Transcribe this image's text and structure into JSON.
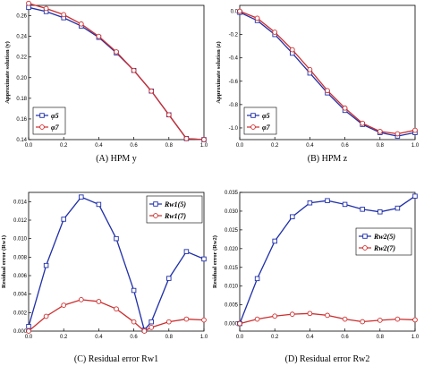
{
  "chart_data": [
    {
      "type": "line",
      "caption": "(A)  HPM y",
      "ylabel": "Approximate solution (y)",
      "xlim": [
        0,
        1
      ],
      "ylim": [
        0.14,
        0.27
      ],
      "xticks": [
        "0.0",
        "0.2",
        "0.4",
        "0.6",
        "0.8",
        "1.0"
      ],
      "yticks": [
        "0.14",
        "0.16",
        "0.18",
        "0.20",
        "0.22",
        "0.24",
        "0.26"
      ],
      "legend_position": "bottom-left",
      "series": [
        {
          "name": "φ5",
          "color": "#1f2fa8",
          "marker": "square",
          "x": [
            0,
            0.1,
            0.2,
            0.3,
            0.4,
            0.5,
            0.6,
            0.7,
            0.8,
            0.9,
            1.0
          ],
          "y": [
            0.268,
            0.264,
            0.258,
            0.25,
            0.239,
            0.224,
            0.207,
            0.187,
            0.164,
            0.141,
            0.14
          ]
        },
        {
          "name": "φ7",
          "color": "#cc2e2e",
          "marker": "circle",
          "x": [
            0,
            0.1,
            0.2,
            0.3,
            0.4,
            0.5,
            0.6,
            0.7,
            0.8,
            0.9,
            1.0
          ],
          "y": [
            0.272,
            0.267,
            0.261,
            0.252,
            0.24,
            0.225,
            0.207,
            0.187,
            0.164,
            0.141,
            0.14
          ]
        }
      ]
    },
    {
      "type": "line",
      "caption": "(B)  HPM z",
      "ylabel": "Approximate solution (z)",
      "xlim": [
        0,
        1
      ],
      "ylim": [
        -1.1,
        0.05
      ],
      "xticks": [
        "0.0",
        "0.2",
        "0.4",
        "0.6",
        "0.8",
        "1.0"
      ],
      "yticks": [
        "0.0",
        "-0.2",
        "-0.4",
        "-0.6",
        "-0.8",
        "-1.0"
      ],
      "legend_position": "bottom-left",
      "series": [
        {
          "name": "φ5",
          "color": "#1f2fa8",
          "marker": "square",
          "x": [
            0,
            0.1,
            0.2,
            0.3,
            0.4,
            0.5,
            0.6,
            0.7,
            0.8,
            0.9,
            1.0
          ],
          "y": [
            -0.01,
            -0.08,
            -0.2,
            -0.36,
            -0.53,
            -0.7,
            -0.85,
            -0.97,
            -1.04,
            -1.07,
            -1.04
          ]
        },
        {
          "name": "φ7",
          "color": "#cc2e2e",
          "marker": "circle",
          "x": [
            0,
            0.1,
            0.2,
            0.3,
            0.4,
            0.5,
            0.6,
            0.7,
            0.8,
            0.9,
            1.0
          ],
          "y": [
            0.0,
            -0.06,
            -0.18,
            -0.33,
            -0.5,
            -0.68,
            -0.83,
            -0.96,
            -1.03,
            -1.05,
            -1.02
          ]
        }
      ]
    },
    {
      "type": "line",
      "caption": "(C)  Residual error Rw1",
      "ylabel": "Residual error (Rw1)",
      "xlim": [
        0,
        1
      ],
      "ylim": [
        0,
        0.015
      ],
      "xticks": [
        "0.0",
        "0.2",
        "0.4",
        "0.6",
        "0.8",
        "1.0"
      ],
      "yticks": [
        "0.000",
        "0.002",
        "0.004",
        "0.006",
        "0.008",
        "0.010",
        "0.012",
        "0.014"
      ],
      "legend_position": "top-right",
      "series": [
        {
          "name": "Rw1(5)",
          "color": "#1f2fa8",
          "marker": "square",
          "x": [
            0,
            0.1,
            0.2,
            0.3,
            0.4,
            0.5,
            0.6,
            0.66,
            0.7,
            0.8,
            0.9,
            1.0
          ],
          "y": [
            0.0005,
            0.0071,
            0.0121,
            0.0145,
            0.0137,
            0.01,
            0.0044,
            0.0001,
            0.001,
            0.0057,
            0.0086,
            0.0078
          ]
        },
        {
          "name": "Rw1(7)",
          "color": "#cc2e2e",
          "marker": "circle",
          "x": [
            0,
            0.1,
            0.2,
            0.3,
            0.4,
            0.5,
            0.6,
            0.66,
            0.7,
            0.8,
            0.9,
            1.0
          ],
          "y": [
            0.0,
            0.0016,
            0.0028,
            0.0034,
            0.0032,
            0.0024,
            0.001,
            0.0,
            0.0004,
            0.001,
            0.0013,
            0.0012
          ]
        }
      ]
    },
    {
      "type": "line",
      "caption": "(D)  Residual error Rw2",
      "ylabel": "Residual error (Rw2)",
      "xlim": [
        0,
        1
      ],
      "ylim": [
        -0.002,
        0.035
      ],
      "xticks": [
        "0.0",
        "0.2",
        "0.4",
        "0.6",
        "0.8",
        "1.0"
      ],
      "yticks": [
        "0.000",
        "0.005",
        "0.010",
        "0.015",
        "0.020",
        "0.025",
        "0.030",
        "0.035"
      ],
      "legend_position": "center-right",
      "series": [
        {
          "name": "Rw2(5)",
          "color": "#1f2fa8",
          "marker": "square",
          "x": [
            0,
            0.1,
            0.2,
            0.3,
            0.4,
            0.5,
            0.6,
            0.7,
            0.8,
            0.9,
            1.0
          ],
          "y": [
            0.0,
            0.012,
            0.022,
            0.0285,
            0.0322,
            0.0328,
            0.0318,
            0.0305,
            0.0298,
            0.0308,
            0.034
          ]
        },
        {
          "name": "Rw2(7)",
          "color": "#cc2e2e",
          "marker": "circle",
          "x": [
            0,
            0.1,
            0.2,
            0.3,
            0.4,
            0.5,
            0.6,
            0.7,
            0.8,
            0.9,
            1.0
          ],
          "y": [
            0.0,
            0.0012,
            0.002,
            0.0025,
            0.0027,
            0.0022,
            0.0012,
            0.0005,
            0.0009,
            0.0012,
            0.001
          ]
        }
      ]
    }
  ]
}
